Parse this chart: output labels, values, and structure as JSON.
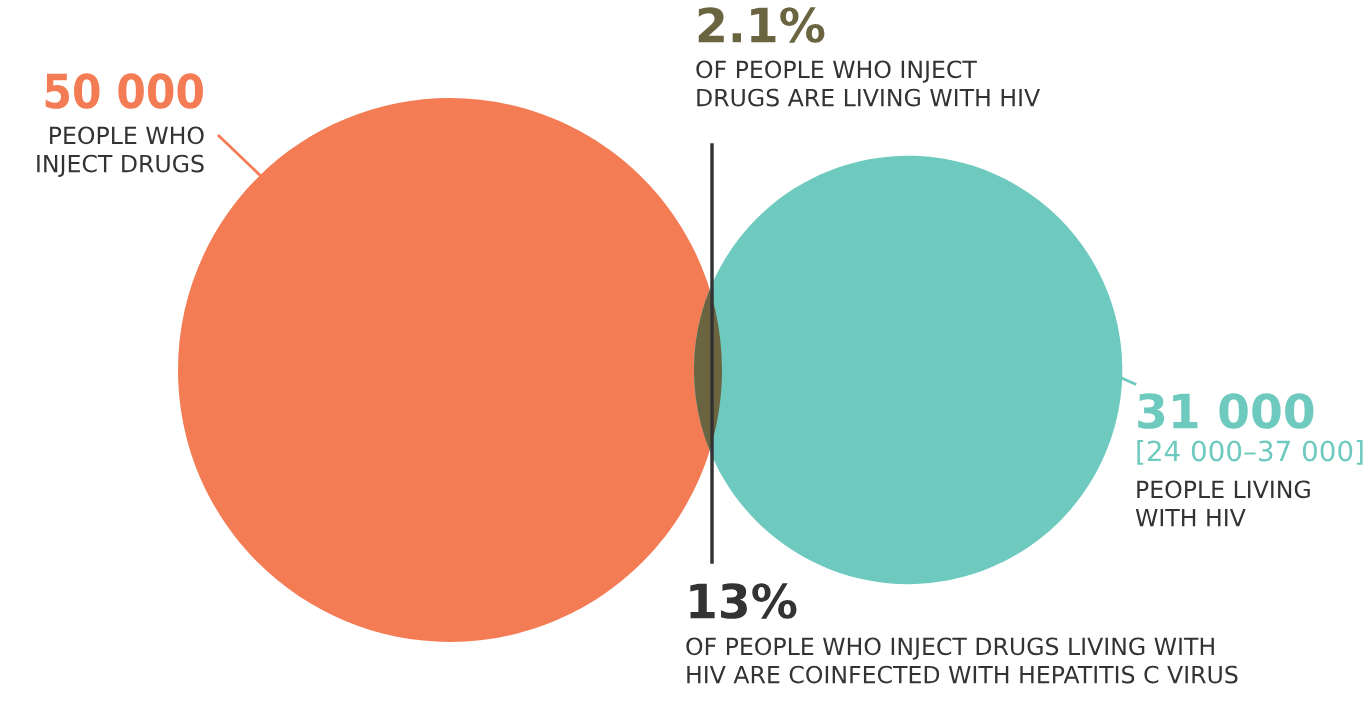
{
  "chart_data": {
    "type": "other",
    "categories": [
      "PEOPLE WHO\nINJECT DRUGS",
      "PEOPLE LIVING\nWITH HIV"
    ],
    "values": [
      50000,
      31000
    ],
    "value_labels": [
      "50 000",
      "31 000"
    ],
    "colors": [
      "#f47c55",
      "#6ec9be"
    ],
    "annotations": [
      "[24 000–37 000]",
      "2.1%",
      "OF PEOPLE WHO INJECT\nDRUGS ARE LIVING WITH HIV",
      "13%",
      "OF PEOPLE WHO INJECT DRUGS LIVING WITH\nHIV ARE COINFECTED WITH HEPATITIS C VIRUS"
    ]
  }
}
